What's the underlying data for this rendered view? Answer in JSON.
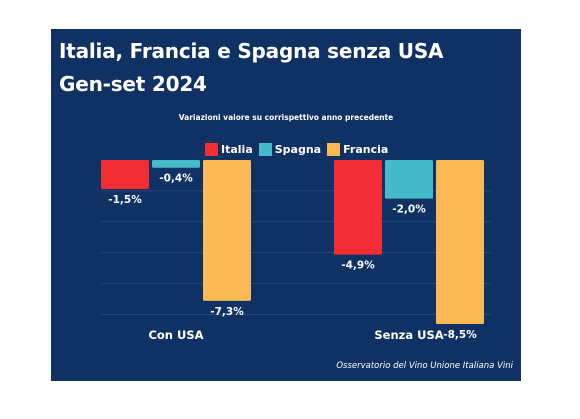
{
  "title_lines": [
    "Italia, Francia e Spagna senza USA",
    "Gen-set 2024"
  ],
  "footer": "Osservatorio del Vino Unione Italiana Vini",
  "colors": {
    "background": "#0f3164",
    "Italia": "#f22d33",
    "Spagna": "#45bac8",
    "Francia": "#fbb954",
    "grid": "#2d4f82"
  },
  "chart_data": {
    "type": "bar",
    "title": "Italia, Francia e Spagna senza USA Gen-set 2024",
    "subtitle": "Variazioni valore su corrispettivo anno precedente",
    "categories": [
      "Con USA",
      "Senza USA"
    ],
    "series": [
      {
        "name": "Italia",
        "values": [
          -1.5,
          -4.9
        ],
        "labels": [
          "-1,5%",
          "-4,9%"
        ]
      },
      {
        "name": "Spagna",
        "values": [
          -0.4,
          -2.0
        ],
        "labels": [
          "-0,4%",
          "-2,0%"
        ]
      },
      {
        "name": "Francia",
        "values": [
          -7.3,
          -8.5
        ],
        "labels": [
          "-7,3%",
          "-8,5%"
        ]
      }
    ],
    "ylim": [
      -9,
      0
    ],
    "grid": true,
    "legend": "top"
  }
}
